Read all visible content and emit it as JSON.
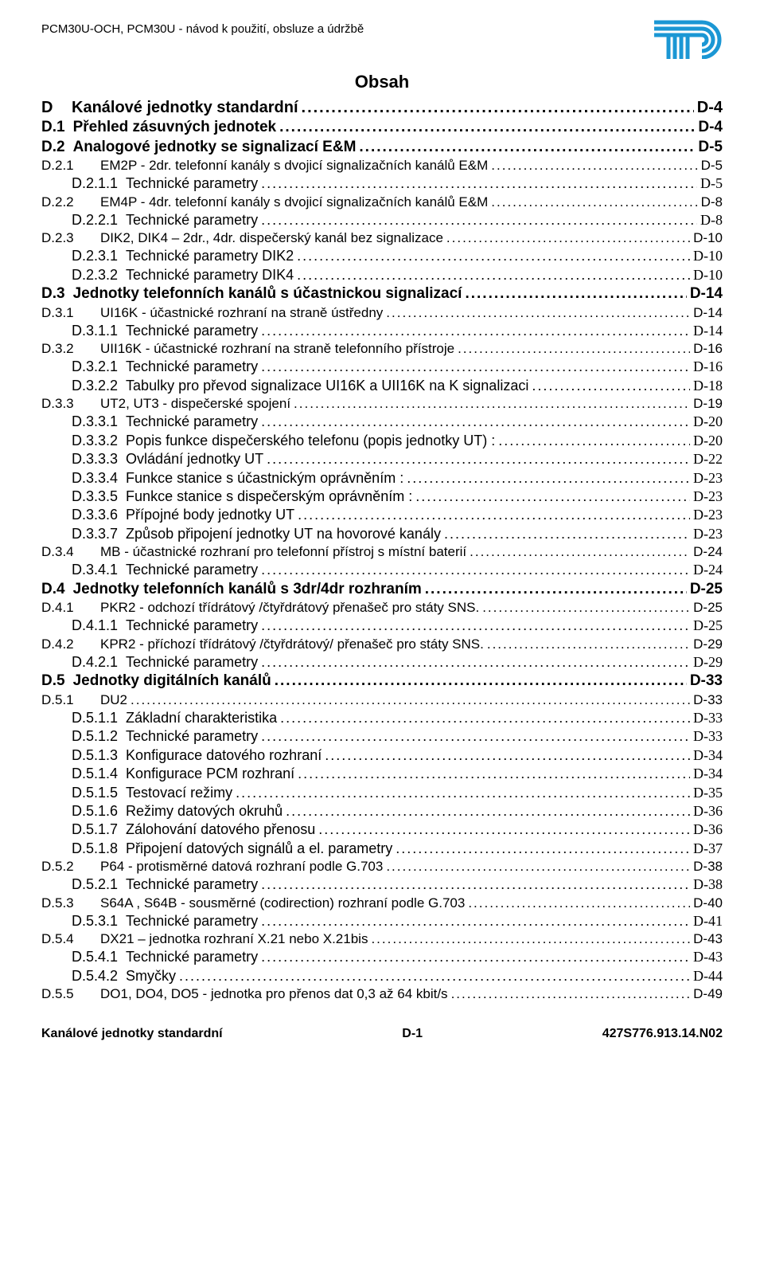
{
  "header": {
    "title": "PCM30U-OCH,  PCM30U -  návod k použití, obsluze a údržbě"
  },
  "logo": {
    "color": "#1b97d4",
    "width": 86,
    "height": 50
  },
  "obsah": "Obsah",
  "toc": [
    {
      "lvl": 0,
      "num": "D",
      "label": "Kanálové jednotky standardní",
      "page": "D-4",
      "bold": true,
      "tnr": false
    },
    {
      "lvl": 1,
      "num": "D.1",
      "label": "Přehled zásuvných jednotek",
      "page": "D-4",
      "bold": true,
      "tnr": false
    },
    {
      "lvl": 1,
      "num": "D.2",
      "label": "Analogové jednotky se signalizací E&M",
      "page": "D-5",
      "bold": true,
      "tnr": false
    },
    {
      "lvl": 2,
      "num": "D.2.1",
      "label": "EM2P - 2dr.  telefonní kanály s dvojicí signalizačních kanálů E&M",
      "page": "D-5",
      "bold": false,
      "tnr": false
    },
    {
      "lvl": 3,
      "num": "D.2.1.1",
      "label": "Technické parametry",
      "page": "D-5",
      "bold": false,
      "tnr": true
    },
    {
      "lvl": 2,
      "num": "D.2.2",
      "label": "EM4P - 4dr.  telefonní kanály s dvojicí signalizačních kanálů E&M",
      "page": "D-8",
      "bold": false,
      "tnr": false
    },
    {
      "lvl": 3,
      "num": "D.2.2.1",
      "label": "Technické parametry",
      "page": "D-8",
      "bold": false,
      "tnr": true
    },
    {
      "lvl": 2,
      "num": "D.2.3",
      "label": "DIK2, DIK4 – 2dr., 4dr. dispečerský kanál bez signalizace",
      "page": "D-10",
      "bold": false,
      "tnr": false
    },
    {
      "lvl": 3,
      "num": "D.2.3.1",
      "label": "Technické parametry DIK2",
      "page": "D-10",
      "bold": false,
      "tnr": true
    },
    {
      "lvl": 3,
      "num": "D.2.3.2",
      "label": "Technické parametry DIK4",
      "page": "D-10",
      "bold": false,
      "tnr": true
    },
    {
      "lvl": 1,
      "num": "D.3",
      "label": "Jednotky telefonních kanálů s účastnickou signalizací",
      "page": "D-14",
      "bold": true,
      "tnr": false
    },
    {
      "lvl": 2,
      "num": "D.3.1",
      "label": "UI16K - účastnické rozhraní na straně ústředny",
      "page": "D-14",
      "bold": false,
      "tnr": false
    },
    {
      "lvl": 3,
      "num": "D.3.1.1",
      "label": "Technické parametry",
      "page": "D-14",
      "bold": false,
      "tnr": true
    },
    {
      "lvl": 2,
      "num": "D.3.2",
      "label": "UII16K - účastnické rozhraní na straně telefonního přístroje",
      "page": "D-16",
      "bold": false,
      "tnr": false
    },
    {
      "lvl": 3,
      "num": "D.3.2.1",
      "label": "Technické parametry",
      "page": "D-16",
      "bold": false,
      "tnr": true
    },
    {
      "lvl": 3,
      "num": "D.3.2.2",
      "label": "Tabulky pro převod signalizace UI16K  a  UII16K na K signalizaci",
      "page": "D-18",
      "bold": false,
      "tnr": true
    },
    {
      "lvl": 2,
      "num": "D.3.3",
      "label": "UT2, UT3 - dispečerské spojení",
      "page": "D-19",
      "bold": false,
      "tnr": false
    },
    {
      "lvl": 3,
      "num": "D.3.3.1",
      "label": "Technické parametry",
      "page": "D-20",
      "bold": false,
      "tnr": true
    },
    {
      "lvl": 3,
      "num": "D.3.3.2",
      "label": "Popis funkce dispečerského telefonu (popis jednotky UT) :",
      "page": "D-20",
      "bold": false,
      "tnr": true
    },
    {
      "lvl": 3,
      "num": "D.3.3.3",
      "label": "Ovládání jednotky UT",
      "page": "D-22",
      "bold": false,
      "tnr": true
    },
    {
      "lvl": 3,
      "num": "D.3.3.4",
      "label": "Funkce stanice s účastnickým oprávněním :",
      "page": "D-23",
      "bold": false,
      "tnr": true
    },
    {
      "lvl": 3,
      "num": "D.3.3.5",
      "label": "Funkce stanice s dispečerským oprávněním :",
      "page": "D-23",
      "bold": false,
      "tnr": true
    },
    {
      "lvl": 3,
      "num": "D.3.3.6",
      "label": "Přípojné body jednotky UT",
      "page": "D-23",
      "bold": false,
      "tnr": true
    },
    {
      "lvl": 3,
      "num": "D.3.3.7",
      "label": "Způsob připojení jednotky UT na hovorové kanály",
      "page": "D-23",
      "bold": false,
      "tnr": true
    },
    {
      "lvl": 2,
      "num": "D.3.4",
      "label": "MB - účastnické rozhraní pro telefonní přístroj s místní baterií",
      "page": "D-24",
      "bold": false,
      "tnr": false
    },
    {
      "lvl": 3,
      "num": "D.3.4.1",
      "label": "Technické parametry",
      "page": "D-24",
      "bold": false,
      "tnr": true
    },
    {
      "lvl": 1,
      "num": "D.4",
      "label": "Jednotky telefonních kanálů s 3dr/4dr rozhraním",
      "page": "D-25",
      "bold": true,
      "tnr": false
    },
    {
      "lvl": 2,
      "num": "D.4.1",
      "label": "PKR2 - odchozí třídrátový /čtyřdrátový přenašeč pro státy SNS.",
      "page": "D-25",
      "bold": false,
      "tnr": false
    },
    {
      "lvl": 3,
      "num": "D.4.1.1",
      "label": "Technické parametry",
      "page": "D-25",
      "bold": false,
      "tnr": true
    },
    {
      "lvl": 2,
      "num": "D.4.2",
      "label": "KPR2 - příchozí třídrátový /čtyřdrátový/ přenašeč pro státy SNS.",
      "page": "D-29",
      "bold": false,
      "tnr": false
    },
    {
      "lvl": 3,
      "num": "D.4.2.1",
      "label": "Technické parametry",
      "page": "D-29",
      "bold": false,
      "tnr": true
    },
    {
      "lvl": 1,
      "num": "D.5",
      "label": "Jednotky digitálních kanálů",
      "page": "D-33",
      "bold": true,
      "tnr": false
    },
    {
      "lvl": 2,
      "num": "D.5.1",
      "label": "DU2",
      "page": "D-33",
      "bold": false,
      "tnr": false
    },
    {
      "lvl": 3,
      "num": "D.5.1.1",
      "label": "Základní charakteristika",
      "page": "D-33",
      "bold": false,
      "tnr": true
    },
    {
      "lvl": 3,
      "num": "D.5.1.2",
      "label": "Technické parametry",
      "page": "D-33",
      "bold": false,
      "tnr": true
    },
    {
      "lvl": 3,
      "num": "D.5.1.3",
      "label": "Konfigurace datového rozhraní",
      "page": "D-34",
      "bold": false,
      "tnr": true
    },
    {
      "lvl": 3,
      "num": "D.5.1.4",
      "label": "Konfigurace PCM rozhraní",
      "page": "D-34",
      "bold": false,
      "tnr": true
    },
    {
      "lvl": 3,
      "num": "D.5.1.5",
      "label": "Testovací režimy",
      "page": "D-35",
      "bold": false,
      "tnr": true
    },
    {
      "lvl": 3,
      "num": "D.5.1.6",
      "label": "Režimy datových okruhů",
      "page": "D-36",
      "bold": false,
      "tnr": true
    },
    {
      "lvl": 3,
      "num": "D.5.1.7",
      "label": "Zálohování datového přenosu",
      "page": "D-36",
      "bold": false,
      "tnr": true
    },
    {
      "lvl": 3,
      "num": "D.5.1.8",
      "label": "Připojení datových signálů a el. parametry",
      "page": "D-37",
      "bold": false,
      "tnr": true
    },
    {
      "lvl": 2,
      "num": "D.5.2",
      "label": "P64 - protisměrné datová rozhraní podle G.703",
      "page": "D-38",
      "bold": false,
      "tnr": false
    },
    {
      "lvl": 3,
      "num": "D.5.2.1",
      "label": "Technické parametry",
      "page": "D-38",
      "bold": false,
      "tnr": true
    },
    {
      "lvl": 2,
      "num": "D.5.3",
      "label": "S64A , S64B - sousměrné (codirection) rozhraní podle G.703",
      "page": "D-40",
      "bold": false,
      "tnr": false
    },
    {
      "lvl": 3,
      "num": "D.5.3.1",
      "label": "Technické parametry",
      "page": "D-41",
      "bold": false,
      "tnr": true
    },
    {
      "lvl": 2,
      "num": "D.5.4",
      "label": "DX21 – jednotka rozhraní X.21 nebo X.21bis",
      "page": "D-43",
      "bold": false,
      "tnr": false
    },
    {
      "lvl": 3,
      "num": "D.5.4.1",
      "label": "Technické parametry",
      "page": "D-43",
      "bold": false,
      "tnr": true
    },
    {
      "lvl": 3,
      "num": "D.5.4.2",
      "label": "Smyčky",
      "page": "D-44",
      "bold": false,
      "tnr": true
    },
    {
      "lvl": 2,
      "num": "D.5.5",
      "label": "DO1, DO4, DO5 -  jednotka pro přenos dat 0,3 až 64 kbit/s",
      "page": "D-49",
      "bold": false,
      "tnr": false
    }
  ],
  "footer": {
    "left": "Kanálové jednotky standardní",
    "center": "D-1",
    "right": "427S776.913.14.N02"
  }
}
